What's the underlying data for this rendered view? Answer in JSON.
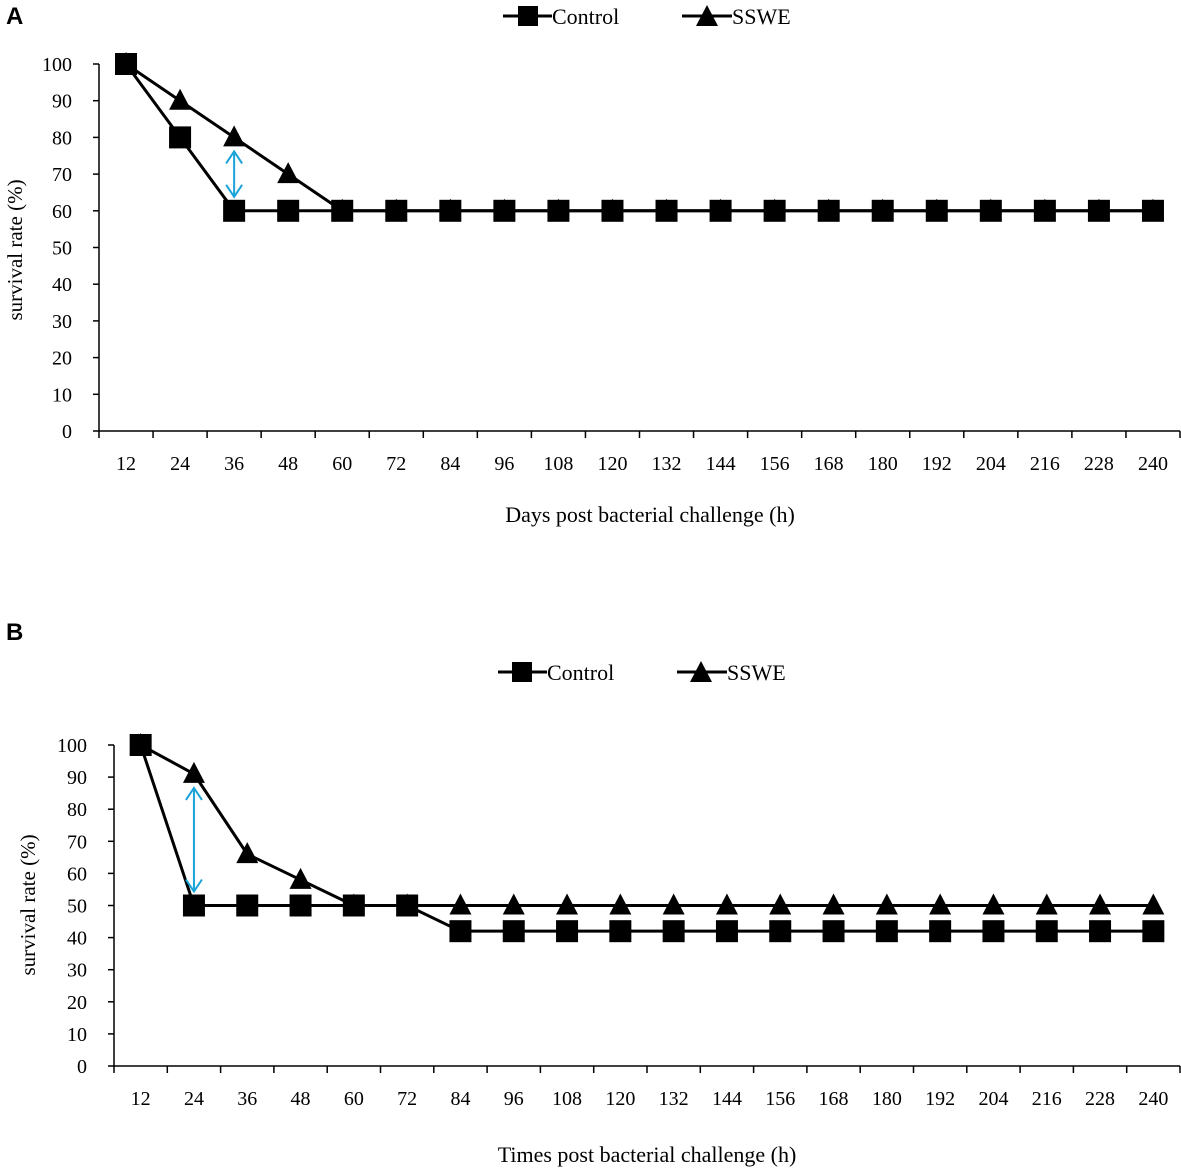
{
  "chart_data": [
    {
      "type": "line",
      "panel_label": "A",
      "title": "",
      "xlabel": "Days post bacterial challenge (h)",
      "ylabel": "survival rate (%)",
      "categories": [
        "12",
        "24",
        "36",
        "48",
        "60",
        "72",
        "84",
        "96",
        "108",
        "120",
        "132",
        "144",
        "156",
        "168",
        "180",
        "192",
        "204",
        "216",
        "228",
        "240"
      ],
      "ylim": [
        0,
        100
      ],
      "yticks": [
        "0",
        "10",
        "20",
        "30",
        "40",
        "50",
        "60",
        "70",
        "80",
        "90",
        "100"
      ],
      "legend_position": "top-center",
      "series": [
        {
          "name": "Control",
          "marker": "square",
          "values": [
            100,
            80,
            60,
            60,
            60,
            60,
            60,
            60,
            60,
            60,
            60,
            60,
            60,
            60,
            60,
            60,
            60,
            60,
            60,
            60
          ]
        },
        {
          "name": "SSWE",
          "marker": "triangle",
          "values": [
            100,
            90,
            80,
            70,
            60,
            60,
            60,
            60,
            60,
            60,
            60,
            60,
            60,
            60,
            60,
            60,
            60,
            60,
            60,
            60
          ]
        }
      ],
      "annotations": [
        {
          "type": "double-arrow",
          "category": "36",
          "from": 80,
          "to": 60,
          "color": "#1aa3d9"
        }
      ]
    },
    {
      "type": "line",
      "panel_label": "B",
      "title": "",
      "xlabel": "Times post bacterial challenge (h)",
      "ylabel": "survival rate (%)",
      "categories": [
        "12",
        "24",
        "36",
        "48",
        "60",
        "72",
        "84",
        "96",
        "108",
        "120",
        "132",
        "144",
        "156",
        "168",
        "180",
        "192",
        "204",
        "216",
        "228",
        "240"
      ],
      "ylim": [
        0,
        100
      ],
      "yticks": [
        "0",
        "10",
        "20",
        "30",
        "40",
        "50",
        "60",
        "70",
        "80",
        "90",
        "100"
      ],
      "legend_position": "top-center",
      "series": [
        {
          "name": "Control",
          "marker": "square",
          "values": [
            100,
            50,
            50,
            50,
            50,
            50,
            42,
            42,
            42,
            42,
            42,
            42,
            42,
            42,
            42,
            42,
            42,
            42,
            42,
            42
          ]
        },
        {
          "name": "SSWE",
          "marker": "triangle",
          "values": [
            100,
            91,
            66,
            58,
            50,
            50,
            50,
            50,
            50,
            50,
            50,
            50,
            50,
            50,
            50,
            50,
            50,
            50,
            50,
            50
          ]
        }
      ],
      "annotations": [
        {
          "type": "double-arrow",
          "category": "24",
          "from": 91,
          "to": 50,
          "color": "#1aa3d9"
        }
      ]
    }
  ]
}
